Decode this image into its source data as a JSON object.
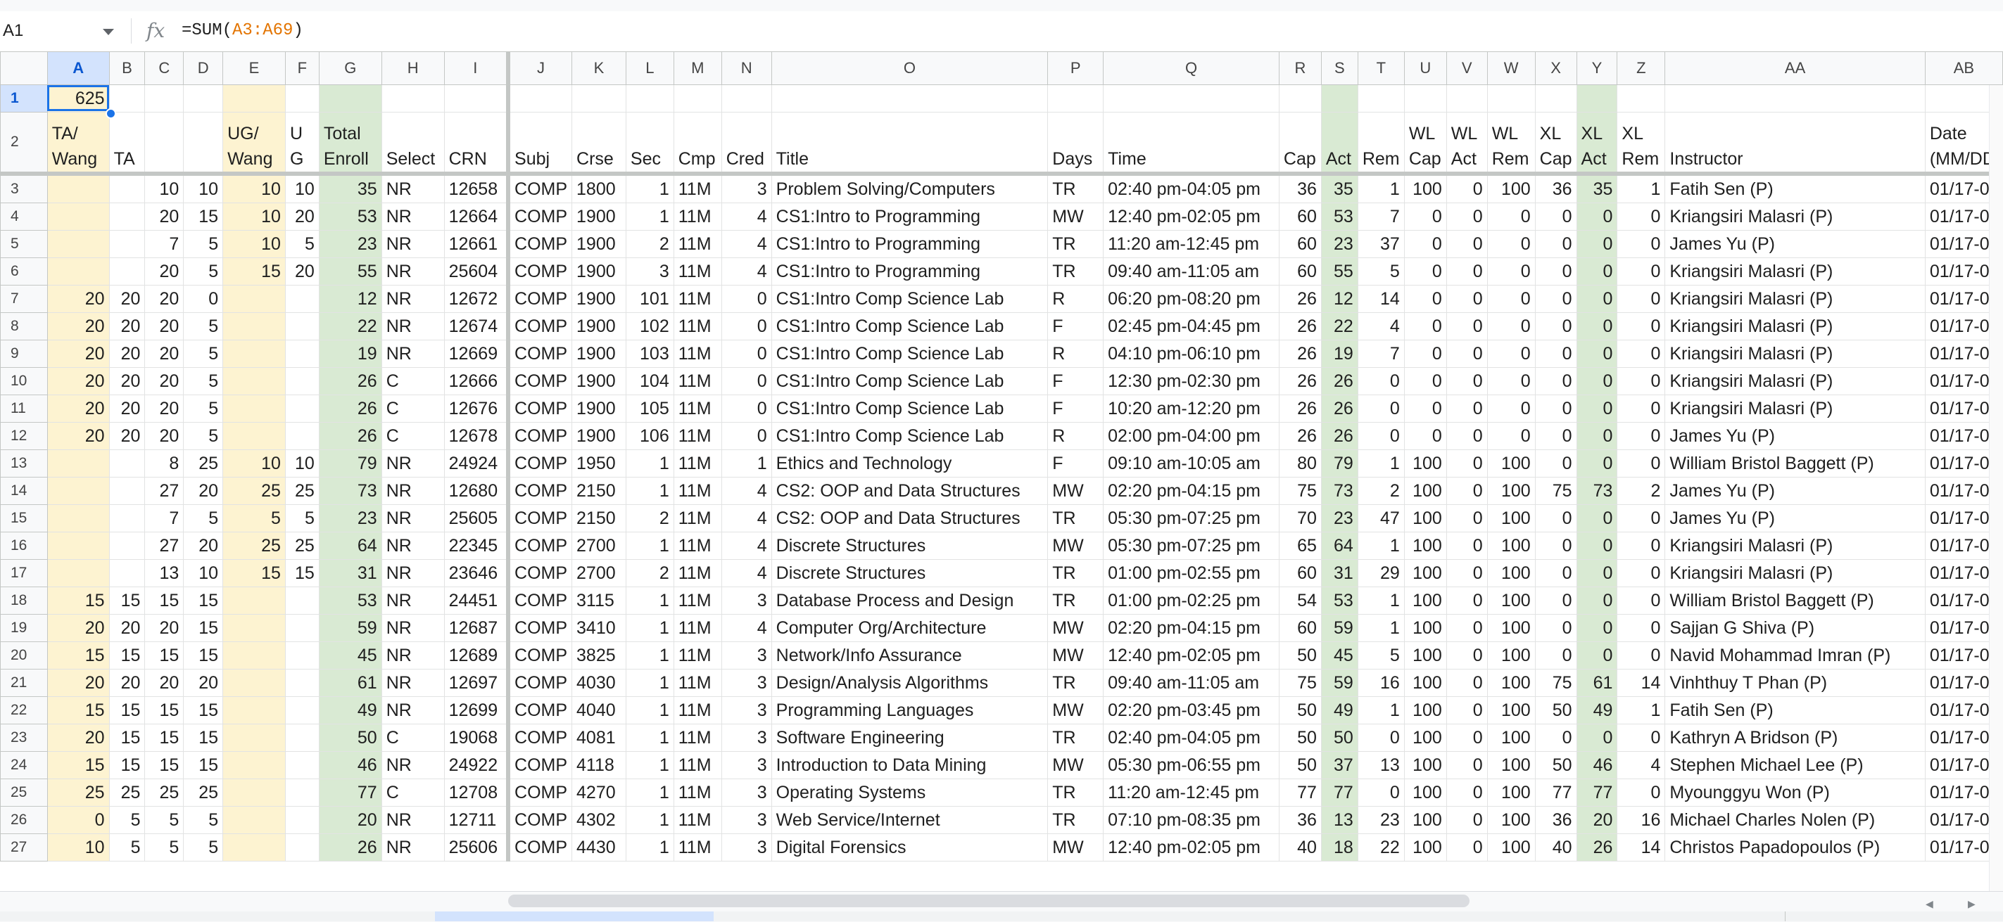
{
  "formula_bar": {
    "name_box": "A1",
    "fx_symbol": "fx",
    "formula_prefix": "=SUM(",
    "formula_range": "A3:A69",
    "formula_suffix": ")"
  },
  "columns": [
    "A",
    "B",
    "C",
    "D",
    "E",
    "F",
    "G",
    "H",
    "I",
    "J",
    "K",
    "L",
    "M",
    "N",
    "O",
    "P",
    "Q",
    "R",
    "S",
    "T",
    "U",
    "V",
    "W",
    "X",
    "Y",
    "Z",
    "AA",
    "AB"
  ],
  "colors": {
    "selection": "#1a73e8",
    "yellow_fill": "#fdf3d1",
    "green_fill": "#d9ead3"
  },
  "row1": {
    "num": "1",
    "a1": "625"
  },
  "headers": {
    "num": "2",
    "A": "TA/ Wang",
    "B": "TA",
    "C": "",
    "D": "",
    "E": "UG/ Wang",
    "F": "U G",
    "G": "Total Enroll",
    "H": "Select",
    "I": "CRN",
    "J": "Subj",
    "K": "Crse",
    "L": "Sec",
    "M": "Cmp",
    "N": "Cred",
    "O": "Title",
    "P": "Days",
    "Q": "Time",
    "R": "Cap",
    "S": "Act",
    "T": "Rem",
    "U": "WL Cap",
    "V": "WL Act",
    "W": "WL Rem",
    "X": "XL Cap",
    "Y": "XL Act",
    "Z": "XL Rem",
    "AA": "Instructor",
    "AB": "Date (MM/DD"
  },
  "rows": [
    {
      "num": "3",
      "A": "",
      "B": "",
      "C": "10",
      "D": "10",
      "E": "10",
      "F": "10",
      "G": "35",
      "H": "NR",
      "I": "12658",
      "J": "COMP",
      "K": "1800",
      "L": "1",
      "M": "11M",
      "N": "3",
      "O": "Problem Solving/Computers",
      "P": "TR",
      "Q": "02:40 pm-04:05 pm",
      "R": "36",
      "S": "35",
      "T": "1",
      "U": "100",
      "V": "0",
      "W": "100",
      "X": "36",
      "Y": "35",
      "Z": "1",
      "AA": "Fatih Sen (P)",
      "AB": "01/17-0"
    },
    {
      "num": "4",
      "A": "",
      "B": "",
      "C": "20",
      "D": "15",
      "E": "10",
      "F": "20",
      "G": "53",
      "H": "NR",
      "I": "12664",
      "J": "COMP",
      "K": "1900",
      "L": "1",
      "M": "11M",
      "N": "4",
      "O": "CS1:Intro to Programming",
      "P": "MW",
      "Q": "12:40 pm-02:05 pm",
      "R": "60",
      "S": "53",
      "T": "7",
      "U": "0",
      "V": "0",
      "W": "0",
      "X": "0",
      "Y": "0",
      "Z": "0",
      "AA": "Kriangsiri Malasri (P)",
      "AB": "01/17-0"
    },
    {
      "num": "5",
      "A": "",
      "B": "",
      "C": "7",
      "D": "5",
      "E": "10",
      "F": "5",
      "G": "23",
      "H": "NR",
      "I": "12661",
      "J": "COMP",
      "K": "1900",
      "L": "2",
      "M": "11M",
      "N": "4",
      "O": "CS1:Intro to Programming",
      "P": "TR",
      "Q": "11:20 am-12:45 pm",
      "R": "60",
      "S": "23",
      "T": "37",
      "U": "0",
      "V": "0",
      "W": "0",
      "X": "0",
      "Y": "0",
      "Z": "0",
      "AA": "James Yu (P)",
      "AB": "01/17-0"
    },
    {
      "num": "6",
      "A": "",
      "B": "",
      "C": "20",
      "D": "5",
      "E": "15",
      "F": "20",
      "G": "55",
      "H": "NR",
      "I": "25604",
      "J": "COMP",
      "K": "1900",
      "L": "3",
      "M": "11M",
      "N": "4",
      "O": "CS1:Intro to Programming",
      "P": "TR",
      "Q": "09:40 am-11:05 am",
      "R": "60",
      "S": "55",
      "T": "5",
      "U": "0",
      "V": "0",
      "W": "0",
      "X": "0",
      "Y": "0",
      "Z": "0",
      "AA": "Kriangsiri Malasri (P)",
      "AB": "01/17-0"
    },
    {
      "num": "7",
      "A": "20",
      "B": "20",
      "C": "20",
      "D": "0",
      "E": "",
      "F": "",
      "G": "12",
      "H": "NR",
      "I": "12672",
      "J": "COMP",
      "K": "1900",
      "L": "101",
      "M": "11M",
      "N": "0",
      "O": "CS1:Intro Comp Science Lab",
      "P": "R",
      "Q": "06:20 pm-08:20 pm",
      "R": "26",
      "S": "12",
      "T": "14",
      "U": "0",
      "V": "0",
      "W": "0",
      "X": "0",
      "Y": "0",
      "Z": "0",
      "AA": "Kriangsiri Malasri (P)",
      "AB": "01/17-0"
    },
    {
      "num": "8",
      "A": "20",
      "B": "20",
      "C": "20",
      "D": "5",
      "E": "",
      "F": "",
      "G": "22",
      "H": "NR",
      "I": "12674",
      "J": "COMP",
      "K": "1900",
      "L": "102",
      "M": "11M",
      "N": "0",
      "O": "CS1:Intro Comp Science Lab",
      "P": "F",
      "Q": "02:45 pm-04:45 pm",
      "R": "26",
      "S": "22",
      "T": "4",
      "U": "0",
      "V": "0",
      "W": "0",
      "X": "0",
      "Y": "0",
      "Z": "0",
      "AA": "Kriangsiri Malasri (P)",
      "AB": "01/17-0"
    },
    {
      "num": "9",
      "A": "20",
      "B": "20",
      "C": "20",
      "D": "5",
      "E": "",
      "F": "",
      "G": "19",
      "H": "NR",
      "I": "12669",
      "J": "COMP",
      "K": "1900",
      "L": "103",
      "M": "11M",
      "N": "0",
      "O": "CS1:Intro Comp Science Lab",
      "P": "R",
      "Q": "04:10 pm-06:10 pm",
      "R": "26",
      "S": "19",
      "T": "7",
      "U": "0",
      "V": "0",
      "W": "0",
      "X": "0",
      "Y": "0",
      "Z": "0",
      "AA": "Kriangsiri Malasri (P)",
      "AB": "01/17-0"
    },
    {
      "num": "10",
      "A": "20",
      "B": "20",
      "C": "20",
      "D": "5",
      "E": "",
      "F": "",
      "G": "26",
      "H": "C",
      "I": "12666",
      "J": "COMP",
      "K": "1900",
      "L": "104",
      "M": "11M",
      "N": "0",
      "O": "CS1:Intro Comp Science Lab",
      "P": "F",
      "Q": "12:30 pm-02:30 pm",
      "R": "26",
      "S": "26",
      "T": "0",
      "U": "0",
      "V": "0",
      "W": "0",
      "X": "0",
      "Y": "0",
      "Z": "0",
      "AA": "Kriangsiri Malasri (P)",
      "AB": "01/17-0"
    },
    {
      "num": "11",
      "A": "20",
      "B": "20",
      "C": "20",
      "D": "5",
      "E": "",
      "F": "",
      "G": "26",
      "H": "C",
      "I": "12676",
      "J": "COMP",
      "K": "1900",
      "L": "105",
      "M": "11M",
      "N": "0",
      "O": "CS1:Intro Comp Science Lab",
      "P": "F",
      "Q": "10:20 am-12:20 pm",
      "R": "26",
      "S": "26",
      "T": "0",
      "U": "0",
      "V": "0",
      "W": "0",
      "X": "0",
      "Y": "0",
      "Z": "0",
      "AA": "Kriangsiri Malasri (P)",
      "AB": "01/17-0"
    },
    {
      "num": "12",
      "A": "20",
      "B": "20",
      "C": "20",
      "D": "5",
      "E": "",
      "F": "",
      "G": "26",
      "H": "C",
      "I": "12678",
      "J": "COMP",
      "K": "1900",
      "L": "106",
      "M": "11M",
      "N": "0",
      "O": "CS1:Intro Comp Science Lab",
      "P": "R",
      "Q": "02:00 pm-04:00 pm",
      "R": "26",
      "S": "26",
      "T": "0",
      "U": "0",
      "V": "0",
      "W": "0",
      "X": "0",
      "Y": "0",
      "Z": "0",
      "AA": "James Yu (P)",
      "AB": "01/17-0"
    },
    {
      "num": "13",
      "A": "",
      "B": "",
      "C": "8",
      "D": "25",
      "E": "10",
      "F": "10",
      "G": "79",
      "H": "NR",
      "I": "24924",
      "J": "COMP",
      "K": "1950",
      "L": "1",
      "M": "11M",
      "N": "1",
      "O": "Ethics and Technology",
      "P": "F",
      "Q": "09:10 am-10:05 am",
      "R": "80",
      "S": "79",
      "T": "1",
      "U": "100",
      "V": "0",
      "W": "100",
      "X": "0",
      "Y": "0",
      "Z": "0",
      "AA": "William Bristol Baggett (P)",
      "AB": "01/17-0"
    },
    {
      "num": "14",
      "A": "",
      "B": "",
      "C": "27",
      "D": "20",
      "E": "25",
      "F": "25",
      "G": "73",
      "H": "NR",
      "I": "12680",
      "J": "COMP",
      "K": "2150",
      "L": "1",
      "M": "11M",
      "N": "4",
      "O": "CS2: OOP and Data Structures",
      "P": "MW",
      "Q": "02:20 pm-04:15 pm",
      "R": "75",
      "S": "73",
      "T": "2",
      "U": "100",
      "V": "0",
      "W": "100",
      "X": "75",
      "Y": "73",
      "Z": "2",
      "AA": "James Yu (P)",
      "AB": "01/17-0"
    },
    {
      "num": "15",
      "A": "",
      "B": "",
      "C": "7",
      "D": "5",
      "E": "5",
      "F": "5",
      "G": "23",
      "H": "NR",
      "I": "25605",
      "J": "COMP",
      "K": "2150",
      "L": "2",
      "M": "11M",
      "N": "4",
      "O": "CS2: OOP and Data Structures",
      "P": "TR",
      "Q": "05:30 pm-07:25 pm",
      "R": "70",
      "S": "23",
      "T": "47",
      "U": "100",
      "V": "0",
      "W": "100",
      "X": "0",
      "Y": "0",
      "Z": "0",
      "AA": "James Yu (P)",
      "AB": "01/17-0"
    },
    {
      "num": "16",
      "A": "",
      "B": "",
      "C": "27",
      "D": "20",
      "E": "25",
      "F": "25",
      "G": "64",
      "H": "NR",
      "I": "22345",
      "J": "COMP",
      "K": "2700",
      "L": "1",
      "M": "11M",
      "N": "4",
      "O": "Discrete Structures",
      "P": "MW",
      "Q": "05:30 pm-07:25 pm",
      "R": "65",
      "S": "64",
      "T": "1",
      "U": "100",
      "V": "0",
      "W": "100",
      "X": "0",
      "Y": "0",
      "Z": "0",
      "AA": "Kriangsiri Malasri (P)",
      "AB": "01/17-0"
    },
    {
      "num": "17",
      "A": "",
      "B": "",
      "C": "13",
      "D": "10",
      "E": "15",
      "F": "15",
      "G": "31",
      "H": "NR",
      "I": "23646",
      "J": "COMP",
      "K": "2700",
      "L": "2",
      "M": "11M",
      "N": "4",
      "O": "Discrete Structures",
      "P": "TR",
      "Q": "01:00 pm-02:55 pm",
      "R": "60",
      "S": "31",
      "T": "29",
      "U": "100",
      "V": "0",
      "W": "100",
      "X": "0",
      "Y": "0",
      "Z": "0",
      "AA": "Kriangsiri Malasri (P)",
      "AB": "01/17-0"
    },
    {
      "num": "18",
      "A": "15",
      "B": "15",
      "C": "15",
      "D": "15",
      "E": "",
      "F": "",
      "G": "53",
      "H": "NR",
      "I": "24451",
      "J": "COMP",
      "K": "3115",
      "L": "1",
      "M": "11M",
      "N": "3",
      "O": "Database Process and Design",
      "P": "TR",
      "Q": "01:00 pm-02:25 pm",
      "R": "54",
      "S": "53",
      "T": "1",
      "U": "100",
      "V": "0",
      "W": "100",
      "X": "0",
      "Y": "0",
      "Z": "0",
      "AA": "William Bristol Baggett (P)",
      "AB": "01/17-0"
    },
    {
      "num": "19",
      "A": "20",
      "B": "20",
      "C": "20",
      "D": "15",
      "E": "",
      "F": "",
      "G": "59",
      "H": "NR",
      "I": "12687",
      "J": "COMP",
      "K": "3410",
      "L": "1",
      "M": "11M",
      "N": "4",
      "O": "Computer Org/Architecture",
      "P": "MW",
      "Q": "02:20 pm-04:15 pm",
      "R": "60",
      "S": "59",
      "T": "1",
      "U": "100",
      "V": "0",
      "W": "100",
      "X": "0",
      "Y": "0",
      "Z": "0",
      "AA": "Sajjan G Shiva (P)",
      "AB": "01/17-0"
    },
    {
      "num": "20",
      "A": "15",
      "B": "15",
      "C": "15",
      "D": "15",
      "E": "",
      "F": "",
      "G": "45",
      "H": "NR",
      "I": "12689",
      "J": "COMP",
      "K": "3825",
      "L": "1",
      "M": "11M",
      "N": "3",
      "O": "Network/Info Assurance",
      "P": "MW",
      "Q": "12:40 pm-02:05 pm",
      "R": "50",
      "S": "45",
      "T": "5",
      "U": "100",
      "V": "0",
      "W": "100",
      "X": "0",
      "Y": "0",
      "Z": "0",
      "AA": "Navid Mohammad Imran (P)",
      "AB": "01/17-0"
    },
    {
      "num": "21",
      "A": "20",
      "B": "20",
      "C": "20",
      "D": "20",
      "E": "",
      "F": "",
      "G": "61",
      "H": "NR",
      "I": "12697",
      "J": "COMP",
      "K": "4030",
      "L": "1",
      "M": "11M",
      "N": "3",
      "O": "Design/Analysis Algorithms",
      "P": "TR",
      "Q": "09:40 am-11:05 am",
      "R": "75",
      "S": "59",
      "T": "16",
      "U": "100",
      "V": "0",
      "W": "100",
      "X": "75",
      "Y": "61",
      "Z": "14",
      "AA": "Vinhthuy T Phan (P)",
      "AB": "01/17-0"
    },
    {
      "num": "22",
      "A": "15",
      "B": "15",
      "C": "15",
      "D": "15",
      "E": "",
      "F": "",
      "G": "49",
      "H": "NR",
      "I": "12699",
      "J": "COMP",
      "K": "4040",
      "L": "1",
      "M": "11M",
      "N": "3",
      "O": "Programming Languages",
      "P": "MW",
      "Q": "02:20 pm-03:45 pm",
      "R": "50",
      "S": "49",
      "T": "1",
      "U": "100",
      "V": "0",
      "W": "100",
      "X": "50",
      "Y": "49",
      "Z": "1",
      "AA": "Fatih Sen (P)",
      "AB": "01/17-0"
    },
    {
      "num": "23",
      "A": "20",
      "B": "15",
      "C": "15",
      "D": "15",
      "E": "",
      "F": "",
      "G": "50",
      "H": "C",
      "I": "19068",
      "J": "COMP",
      "K": "4081",
      "L": "1",
      "M": "11M",
      "N": "3",
      "O": "Software Engineering",
      "P": "TR",
      "Q": "02:40 pm-04:05 pm",
      "R": "50",
      "S": "50",
      "T": "0",
      "U": "100",
      "V": "0",
      "W": "100",
      "X": "0",
      "Y": "0",
      "Z": "0",
      "AA": "Kathryn A Bridson (P)",
      "AB": "01/17-0"
    },
    {
      "num": "24",
      "A": "15",
      "B": "15",
      "C": "15",
      "D": "15",
      "E": "",
      "F": "",
      "G": "46",
      "H": "NR",
      "I": "24922",
      "J": "COMP",
      "K": "4118",
      "L": "1",
      "M": "11M",
      "N": "3",
      "O": "Introduction to Data Mining",
      "P": "MW",
      "Q": "05:30 pm-06:55 pm",
      "R": "50",
      "S": "37",
      "T": "13",
      "U": "100",
      "V": "0",
      "W": "100",
      "X": "50",
      "Y": "46",
      "Z": "4",
      "AA": "Stephen Michael Lee (P)",
      "AB": "01/17-0"
    },
    {
      "num": "25",
      "A": "25",
      "B": "25",
      "C": "25",
      "D": "25",
      "E": "",
      "F": "",
      "G": "77",
      "H": "C",
      "I": "12708",
      "J": "COMP",
      "K": "4270",
      "L": "1",
      "M": "11M",
      "N": "3",
      "O": "Operating Systems",
      "P": "TR",
      "Q": "11:20 am-12:45 pm",
      "R": "77",
      "S": "77",
      "T": "0",
      "U": "100",
      "V": "0",
      "W": "100",
      "X": "77",
      "Y": "77",
      "Z": "0",
      "AA": "Myounggyu Won (P)",
      "AB": "01/17-0"
    },
    {
      "num": "26",
      "A": "0",
      "B": "5",
      "C": "5",
      "D": "5",
      "E": "",
      "F": "",
      "G": "20",
      "H": "NR",
      "I": "12711",
      "J": "COMP",
      "K": "4302",
      "L": "1",
      "M": "11M",
      "N": "3",
      "O": "Web Service/Internet",
      "P": "TR",
      "Q": "07:10 pm-08:35 pm",
      "R": "36",
      "S": "13",
      "T": "23",
      "U": "100",
      "V": "0",
      "W": "100",
      "X": "36",
      "Y": "20",
      "Z": "16",
      "AA": "Michael Charles Nolen (P)",
      "AB": "01/17-0"
    },
    {
      "num": "27",
      "A": "10",
      "B": "5",
      "C": "5",
      "D": "5",
      "E": "",
      "F": "",
      "G": "26",
      "H": "NR",
      "I": "25606",
      "J": "COMP",
      "K": "4430",
      "L": "1",
      "M": "11M",
      "N": "3",
      "O": "Digital Forensics",
      "P": "MW",
      "Q": "12:40 pm-02:05 pm",
      "R": "40",
      "S": "18",
      "T": "22",
      "U": "100",
      "V": "0",
      "W": "100",
      "X": "40",
      "Y": "26",
      "Z": "14",
      "AA": "Christos Papadopoulos (P)",
      "AB": "01/17-0"
    }
  ]
}
